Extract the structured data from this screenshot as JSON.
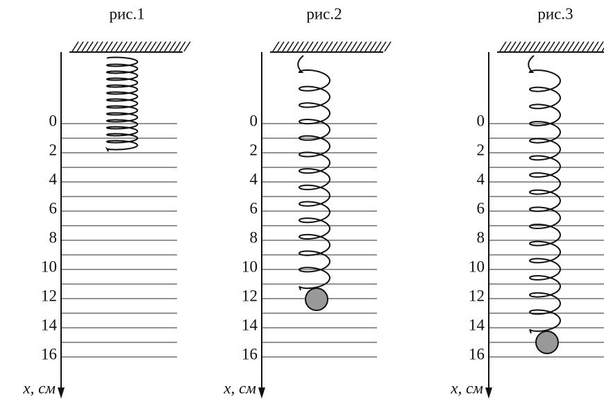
{
  "panels": [
    {
      "title": "рис.1",
      "tick_labels": [
        "0",
        "2",
        "4",
        "6",
        "8",
        "10",
        "12",
        "14",
        "16"
      ],
      "axis_label": "x, см"
    },
    {
      "title": "рис.2",
      "tick_labels": [
        "0",
        "2",
        "4",
        "6",
        "8",
        "10",
        "12",
        "14",
        "16"
      ],
      "axis_label": "x, см"
    },
    {
      "title": "рис.3",
      "tick_labels": [
        "0",
        "2",
        "4",
        "6",
        "8",
        "10",
        "12",
        "14",
        "16"
      ],
      "axis_label": "x, см"
    }
  ]
}
